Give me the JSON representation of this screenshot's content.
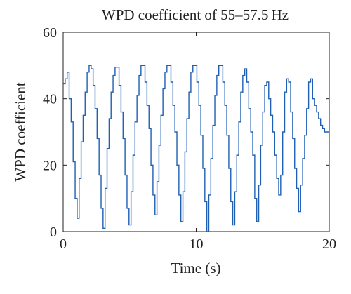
{
  "chart_data": {
    "type": "line",
    "title": "WPD coefficient of 55–57.5 Hz",
    "xlabel": "Time (s)",
    "ylabel": "WPD coefficient",
    "xlim": [
      0,
      20
    ],
    "ylim": [
      0,
      60
    ],
    "xticks": [
      0,
      10,
      20
    ],
    "yticks": [
      0,
      20,
      40,
      60
    ],
    "grid": false,
    "line_style": "step",
    "colors": {
      "series": "#1f5fb4",
      "axis": "#231f20"
    },
    "series": [
      {
        "x": [
          0.0,
          0.15,
          0.3,
          0.45,
          0.6,
          0.75,
          0.9,
          1.05,
          1.2,
          1.35,
          1.5,
          1.65,
          1.8,
          1.95,
          2.1,
          2.25,
          2.4,
          2.55,
          2.7,
          2.85,
          3.0,
          3.15,
          3.3,
          3.45,
          3.6,
          3.75,
          3.9,
          4.05,
          4.2,
          4.35,
          4.5,
          4.65,
          4.8,
          4.95,
          5.1,
          5.25,
          5.4,
          5.55,
          5.7,
          5.85,
          6.0,
          6.15,
          6.3,
          6.45,
          6.6,
          6.75,
          6.9,
          7.05,
          7.2,
          7.35,
          7.5,
          7.65,
          7.8,
          7.95,
          8.1,
          8.25,
          8.4,
          8.55,
          8.7,
          8.85,
          9.0,
          9.15,
          9.3,
          9.45,
          9.6,
          9.75,
          9.9,
          10.05,
          10.2,
          10.35,
          10.5,
          10.65,
          10.8,
          10.95,
          11.1,
          11.25,
          11.4,
          11.55,
          11.7,
          11.85,
          12.0,
          12.15,
          12.3,
          12.45,
          12.6,
          12.75,
          12.9,
          13.05,
          13.2,
          13.35,
          13.5,
          13.65,
          13.8,
          13.95,
          14.1,
          14.25,
          14.4,
          14.55,
          14.7,
          14.85,
          15.0,
          15.15,
          15.3,
          15.45,
          15.6,
          15.75,
          15.9,
          16.05,
          16.2,
          16.35,
          16.5,
          16.65,
          16.8,
          16.95,
          17.1,
          17.25,
          17.4,
          17.55,
          17.7,
          17.85,
          18.0,
          18.15,
          18.3,
          18.45,
          18.6,
          18.75,
          18.9,
          19.05,
          19.2,
          19.35,
          19.5,
          19.65,
          19.8,
          19.95
        ],
        "y": [
          44.5,
          46,
          48,
          40,
          33,
          21,
          10,
          4,
          16,
          27,
          35,
          42,
          48,
          50,
          49,
          44,
          37,
          28,
          17,
          7,
          1,
          13,
          25,
          34,
          42,
          47,
          49.5,
          49.5,
          44,
          36,
          28,
          17,
          7,
          2,
          12,
          23,
          33,
          41,
          47,
          50,
          50,
          45,
          38,
          31,
          20,
          11,
          5,
          15,
          26,
          35,
          43,
          48,
          50,
          50,
          45,
          38,
          30,
          20,
          11,
          3,
          12,
          24,
          34,
          42,
          48,
          50,
          50,
          45,
          38,
          29,
          19,
          9,
          0,
          11,
          22,
          32,
          41,
          47,
          50,
          50,
          45,
          38,
          29,
          19,
          9,
          2,
          12,
          23,
          33,
          42,
          47,
          49,
          45,
          37,
          30,
          23,
          10,
          3,
          14,
          26,
          36,
          44,
          45,
          40,
          35,
          30,
          23,
          16,
          11,
          17,
          30,
          42,
          46,
          45,
          36,
          28,
          19,
          13,
          6,
          14,
          22,
          29,
          37,
          45,
          46,
          40,
          38,
          36,
          34,
          32,
          31,
          30,
          30,
          30
        ]
      }
    ]
  }
}
